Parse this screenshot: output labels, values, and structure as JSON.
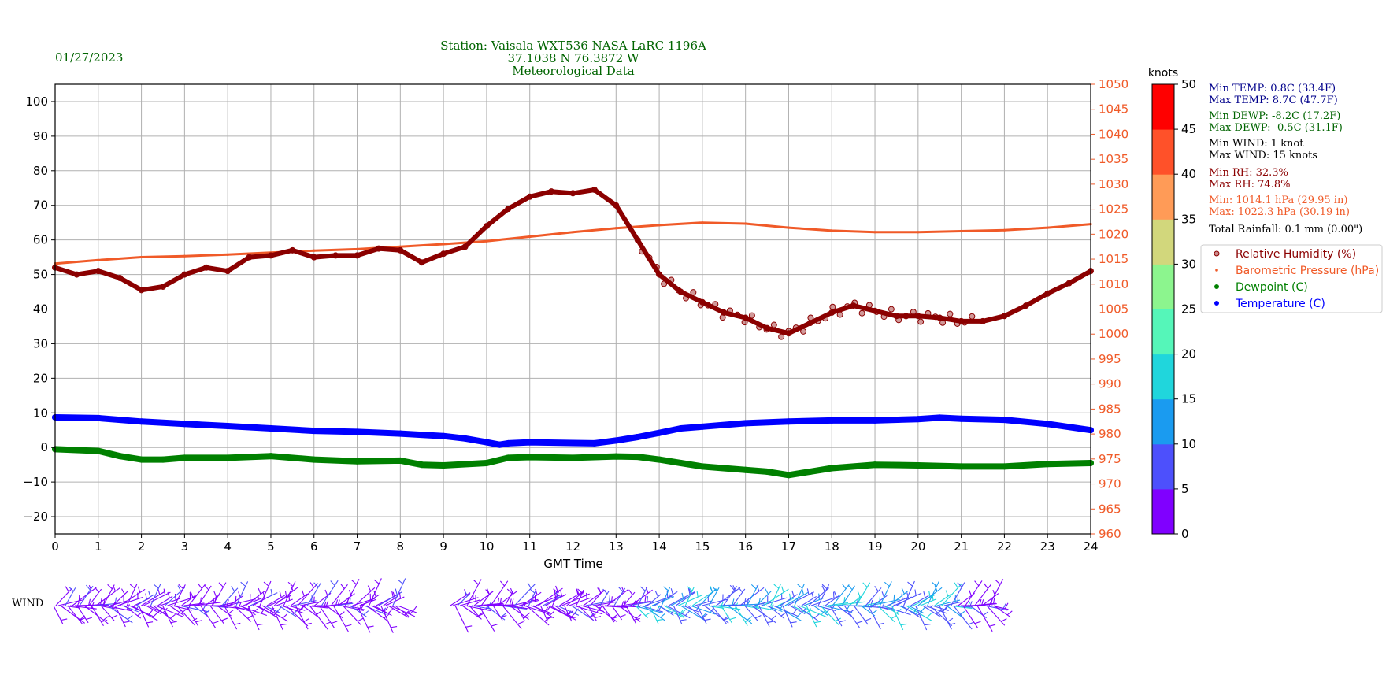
{
  "date": "01/27/2023",
  "title_lines": [
    "Station:  Vaisala WXT536  NASA LaRC 1196A",
    "37.1038 N 76.3872 W",
    "Meteorological Data"
  ],
  "stats": [
    {
      "text": "Min TEMP: 0.8C (33.4F)",
      "color": "#00008b"
    },
    {
      "text": "Max TEMP: 8.7C (47.7F)",
      "color": "#00008b"
    },
    {
      "text": "Min DEWP: -8.2C (17.2F)",
      "color": "#006400"
    },
    {
      "text": "Max DEWP: -0.5C (31.1F)",
      "color": "#006400"
    },
    {
      "text": "Min WIND: 1 knot",
      "color": "#000000"
    },
    {
      "text": "Max WIND: 15 knots",
      "color": "#000000"
    },
    {
      "text": "Min RH: 32.3%",
      "color": "#8b0000"
    },
    {
      "text": "Max RH: 74.8%",
      "color": "#8b0000"
    },
    {
      "text": "Min: 1014.1 hPa (29.95 in)",
      "color": "#f05a28"
    },
    {
      "text": "Max: 1022.3 hPa (30.19 in)",
      "color": "#f05a28"
    },
    {
      "text": "Total Rainfall: 0.1 mm (0.00\")",
      "color": "#000000"
    }
  ],
  "wind_label": "WIND",
  "colorbar": {
    "unit_label": "knots",
    "ticks": [
      "0",
      "5",
      "10",
      "15",
      "20",
      "25",
      "30",
      "35",
      "40",
      "45",
      "50"
    ],
    "colors": [
      "#8000ff",
      "#4d50fc",
      "#1a9bf0",
      "#20d6dc",
      "#55f6b9",
      "#8cf58e",
      "#d2d77c",
      "#ff9b57",
      "#ff5129",
      "#ff0000"
    ]
  },
  "legend": [
    {
      "label": "Relative Humidity (%)",
      "color": "#8b0000",
      "marker": "hollow"
    },
    {
      "label": "Barometric Pressure (hPa)",
      "color": "#f05a28",
      "marker": "small"
    },
    {
      "label": "Dewpoint (C)",
      "color": "#008000",
      "marker": "dot"
    },
    {
      "label": "Temperature (C)",
      "color": "#0000ff",
      "marker": "dot"
    }
  ],
  "chart_data": {
    "type": "scatter",
    "xlabel": "GMT Time",
    "x_ticks": [
      "0",
      "1",
      "2",
      "3",
      "4",
      "5",
      "6",
      "7",
      "8",
      "9",
      "10",
      "11",
      "12",
      "13",
      "14",
      "15",
      "16",
      "17",
      "18",
      "19",
      "20",
      "21",
      "22",
      "23",
      "24"
    ],
    "xlim": [
      0,
      24
    ],
    "y_left": {
      "ticks": [
        "100",
        "90",
        "80",
        "70",
        "60",
        "50",
        "40",
        "30",
        "20",
        "10",
        "0",
        "−10",
        "−20"
      ],
      "ylim": [
        -25,
        105
      ]
    },
    "y_right": {
      "ticks": [
        "1050",
        "1045",
        "1040",
        "1035",
        "1030",
        "1025",
        "1020",
        "1015",
        "1010",
        "1005",
        "1000",
        "995",
        "990",
        "985",
        "980",
        "975",
        "970",
        "965",
        "960"
      ],
      "ylim": [
        960,
        1050
      ],
      "color": "#f05a28"
    },
    "grid": true,
    "legend_position": "right",
    "series": [
      {
        "name": "Relative Humidity (%)",
        "axis": "left",
        "color": "#8b0000",
        "x": [
          0,
          0.5,
          1,
          1.5,
          2,
          2.5,
          3,
          3.5,
          4,
          4.5,
          5,
          5.5,
          6,
          6.5,
          7,
          7.5,
          8,
          8.5,
          9,
          9.5,
          10,
          10.5,
          11,
          11.5,
          12,
          12.5,
          13,
          13.5,
          14,
          14.5,
          15,
          15.5,
          16,
          16.5,
          17,
          17.5,
          18,
          18.5,
          19,
          19.5,
          20,
          20.5,
          21,
          21.5,
          22,
          22.5,
          23,
          23.5,
          24
        ],
        "y": [
          52,
          50,
          51,
          49,
          45.5,
          46.5,
          50,
          52,
          51,
          55,
          55.5,
          57,
          55,
          55.5,
          55.5,
          57.5,
          57,
          53.5,
          56,
          58,
          64,
          69,
          72.5,
          74,
          73.5,
          74.5,
          70,
          60,
          50,
          45,
          42,
          39,
          37.5,
          34.5,
          33,
          36,
          39,
          41,
          39.5,
          38,
          38,
          37.5,
          36.5,
          36.5,
          38,
          41,
          44.5,
          47.5,
          51
        ]
      },
      {
        "name": "Barometric Pressure (hPa)",
        "axis": "right",
        "color": "#f05a28",
        "x": [
          0,
          1,
          2,
          3,
          4,
          5,
          6,
          7,
          8,
          9,
          10,
          11,
          12,
          13,
          14,
          15,
          16,
          17,
          18,
          19,
          20,
          21,
          22,
          23,
          24
        ],
        "y": [
          1014.1,
          1014.8,
          1015.4,
          1015.6,
          1015.9,
          1016.3,
          1016.7,
          1017.0,
          1017.5,
          1018.0,
          1018.6,
          1019.5,
          1020.4,
          1021.2,
          1021.8,
          1022.3,
          1022.1,
          1021.3,
          1020.7,
          1020.4,
          1020.4,
          1020.6,
          1020.8,
          1021.3,
          1022.0
        ]
      },
      {
        "name": "Dewpoint (C)",
        "axis": "left",
        "color": "#008000",
        "x": [
          0,
          1,
          1.5,
          2,
          2.5,
          3,
          4,
          5,
          6,
          7,
          8,
          8.5,
          9,
          10,
          10.5,
          11,
          12,
          13,
          13.5,
          14,
          14.5,
          15,
          16,
          16.5,
          17,
          17.5,
          18,
          19,
          20,
          21,
          22,
          23,
          24
        ],
        "y": [
          -0.5,
          -1,
          -2.5,
          -3.5,
          -3.5,
          -3,
          -3,
          -2.5,
          -3.5,
          -4,
          -3.8,
          -5,
          -5.2,
          -4.5,
          -3,
          -2.8,
          -3,
          -2.6,
          -2.7,
          -3.5,
          -4.5,
          -5.5,
          -6.5,
          -7,
          -8,
          -7,
          -6,
          -5,
          -5.2,
          -5.5,
          -5.5,
          -4.8,
          -4.5
        ]
      },
      {
        "name": "Temperature (C)",
        "axis": "left",
        "color": "#0000ff",
        "x": [
          0,
          1,
          2,
          3,
          4,
          5,
          6,
          7,
          8,
          9,
          9.5,
          10,
          10.3,
          10.5,
          11,
          12,
          12.5,
          13,
          13.5,
          14,
          14.5,
          15,
          16,
          17,
          18,
          19,
          20,
          20.5,
          21,
          22,
          23,
          24
        ],
        "y": [
          8.7,
          8.5,
          7.5,
          6.8,
          6.2,
          5.5,
          4.8,
          4.5,
          4,
          3.3,
          2.6,
          1.5,
          0.8,
          1.2,
          1.5,
          1.3,
          1.2,
          2,
          3,
          4.2,
          5.5,
          6,
          7,
          7.5,
          7.8,
          7.8,
          8.2,
          8.6,
          8.3,
          8,
          6.8,
          5
        ]
      }
    ]
  }
}
